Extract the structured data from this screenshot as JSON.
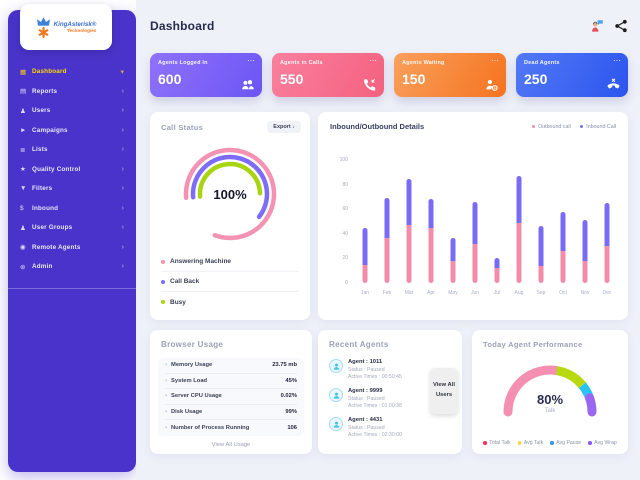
{
  "brand": {
    "name": "KingAsterisk®",
    "tagline": "Technologies"
  },
  "header": {
    "title": "Dashboard"
  },
  "sidebar": {
    "items": [
      {
        "label": "Dashboard",
        "icon": "dashboard",
        "active": true,
        "expanded": true
      },
      {
        "label": "Reports",
        "icon": "reports"
      },
      {
        "label": "Users",
        "icon": "users"
      },
      {
        "label": "Campaigns",
        "icon": "campaigns"
      },
      {
        "label": "Lists",
        "icon": "lists"
      },
      {
        "label": "Quality Control",
        "icon": "quality-control"
      },
      {
        "label": "Filters",
        "icon": "filters"
      },
      {
        "label": "Inbound",
        "icon": "inbound"
      },
      {
        "label": "User Groups",
        "icon": "user-groups"
      },
      {
        "label": "Remote Agents",
        "icon": "remote-agents"
      },
      {
        "label": "Admin",
        "icon": "admin"
      }
    ]
  },
  "stats": [
    {
      "title": "Agents Logged In",
      "value": "600",
      "icon": "users-group-icon",
      "gradient": [
        "#8f72fa",
        "#6c55f4"
      ]
    },
    {
      "title": "Agents in Calls",
      "value": "550",
      "icon": "phone-in-icon",
      "gradient": [
        "#fa7f9e",
        "#f4617f"
      ]
    },
    {
      "title": "Agents Waiting",
      "value": "150",
      "icon": "user-waiting-icon",
      "gradient": [
        "#faa05c",
        "#f4731f"
      ]
    },
    {
      "title": "Dead Agents",
      "value": "250",
      "icon": "phone-x-icon",
      "gradient": [
        "#5379f6",
        "#2b55ee"
      ]
    }
  ],
  "call_status": {
    "title": "Call Status",
    "export_label": "Export ↓",
    "center_value": "100%",
    "rings": [
      {
        "label": "Answering Machine",
        "color": "#f492b4",
        "percent": 82
      },
      {
        "label": "Call Back",
        "color": "#7c6cf7",
        "percent": 62
      },
      {
        "label": "Busy",
        "color": "#a9d411",
        "percent": 51
      }
    ]
  },
  "chart_data": {
    "type": "bar",
    "stacked": true,
    "title": "Inbound/Outbound Details",
    "categories": [
      "Jan",
      "Feb",
      "Mar",
      "Apr",
      "May",
      "Jun",
      "Jul",
      "Aug",
      "Sep",
      "Oct",
      "Nov",
      "Dec"
    ],
    "series": [
      {
        "name": "Outbound call",
        "color": "#f38caa",
        "values": [
          15,
          37,
          47,
          45,
          18,
          32,
          12,
          49,
          14,
          26,
          18,
          30
        ]
      },
      {
        "name": "Inbound Call",
        "color": "#7a6bf5",
        "values": [
          30,
          32,
          38,
          23,
          19,
          34,
          8,
          38,
          32,
          32,
          33,
          35
        ]
      }
    ],
    "ylim": [
      0,
      100
    ],
    "yticks": [
      0,
      20,
      40,
      60,
      80,
      100
    ],
    "legend_position": "top-right",
    "grid": false
  },
  "browser_usage": {
    "title": "Browser Usage",
    "rows": [
      {
        "label": "Memory Usage",
        "value": "23.75 mb"
      },
      {
        "label": "System Load",
        "value": "45%"
      },
      {
        "label": "Server CPU Usage",
        "value": "0.02%"
      },
      {
        "label": "Disk Usage",
        "value": "99%"
      },
      {
        "label": "Number of Process Running",
        "value": "106"
      }
    ],
    "footer_link": "View All Usage"
  },
  "recent_agents": {
    "title": "Recent Agents",
    "button_label": "View All Users",
    "agents": [
      {
        "name": "Agent : 1011",
        "status": "Status : Paused",
        "active_time": "Active Times : 00:50:45"
      },
      {
        "name": "Agent : 9999",
        "status": "Status : Paused",
        "active_time": "Active Times : 01:00:38"
      },
      {
        "name": "Agent : 4431",
        "status": "Status : Paused",
        "active_time": "Active Times : 02:30:00"
      }
    ]
  },
  "performance": {
    "title": "Today Agent Performance",
    "center_value": "80%",
    "center_label": "Talk",
    "segments": [
      {
        "name": "Total Talk",
        "color": "#f48fb1",
        "percent": 55
      },
      {
        "name": "Avg Talk",
        "color": "#b8d90f",
        "percent": 23
      },
      {
        "name": "Avg Pause",
        "color": "#29c3f4",
        "percent": 11
      },
      {
        "name": "Avg Wrap",
        "color": "#9a67f2",
        "percent": 11
      }
    ],
    "legend": [
      {
        "label": "Total Talk",
        "color": "#f5365c"
      },
      {
        "label": "Avg Talk",
        "color": "#fed330"
      },
      {
        "label": "Avg Pause",
        "color": "#2d9cf4"
      },
      {
        "label": "Avg Wrap",
        "color": "#8c5bf0"
      }
    ]
  }
}
